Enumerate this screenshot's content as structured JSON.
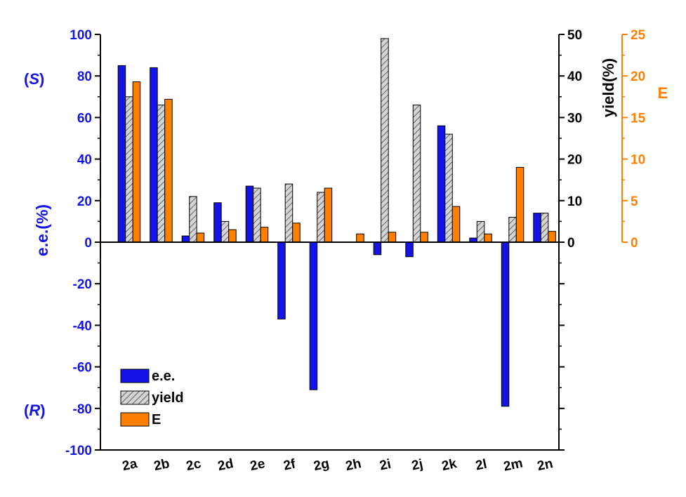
{
  "chart_data": {
    "type": "bar",
    "categories": [
      "2a",
      "2b",
      "2c",
      "2d",
      "2e",
      "2f",
      "2g",
      "2h",
      "2i",
      "2j",
      "2k",
      "2l",
      "2m",
      "2n"
    ],
    "series": [
      {
        "name": "e.e.",
        "axis": "left",
        "color": "#1414e6",
        "values": [
          85,
          84,
          3,
          19,
          27,
          -37,
          -71,
          0,
          -6,
          -7,
          56,
          2,
          -79,
          14
        ]
      },
      {
        "name": "yield",
        "axis": "right1",
        "color": "#c8c8c8",
        "pattern": "hatched",
        "values": [
          35,
          33,
          11,
          5,
          13,
          14,
          12,
          0,
          49,
          33,
          26,
          5,
          6,
          7
        ]
      },
      {
        "name": "E",
        "axis": "right2",
        "color": "#ff8000",
        "values": [
          19.3,
          17.2,
          1.1,
          1.5,
          1.8,
          2.3,
          6.5,
          1.0,
          1.2,
          1.2,
          4.3,
          1.0,
          9.0,
          1.3
        ]
      }
    ],
    "axes": {
      "left": {
        "label": "e.e.(%)",
        "ylim": [
          -100,
          100
        ],
        "ticks": [
          "-100",
          "-80",
          "-60",
          "-40",
          "-20",
          "0",
          "20",
          "40",
          "60",
          "80",
          "100"
        ],
        "color": "#1414e6"
      },
      "right1": {
        "label": "yield(%)",
        "ylim": [
          0,
          50
        ],
        "ticks": [
          "0",
          "10",
          "20",
          "30",
          "40",
          "50"
        ],
        "color": "#000000"
      },
      "right2": {
        "label": "E",
        "ylim": [
          0,
          25
        ],
        "ticks": [
          "0",
          "5",
          "10",
          "15",
          "20",
          "25"
        ],
        "color": "#ff8000"
      }
    },
    "annotations": {
      "S_open": "(",
      "S_letter": "S",
      "S_close": ")",
      "R_open": "(",
      "R_letter": "R",
      "R_close": ")"
    },
    "legend": {
      "placement": "bottom-left",
      "entries": [
        "e.e.",
        "yield",
        "E"
      ]
    },
    "grid": false
  }
}
